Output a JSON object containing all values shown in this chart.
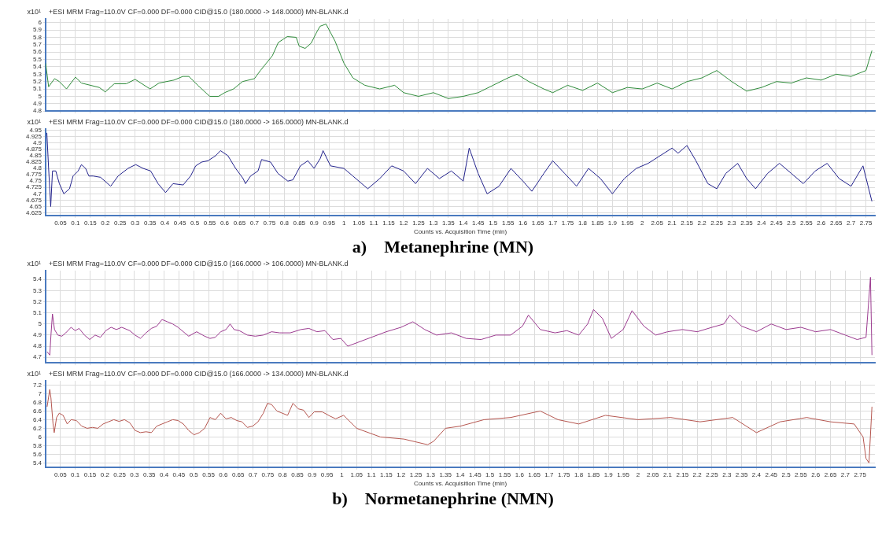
{
  "chart_data": [
    {
      "type": "line",
      "title": "+ESI MRM Frag=110.0V CF=0.000 DF=0.000 CID@15.0 (180.0000 -> 148.0000) MN-BLANK.d",
      "ylabel": "x10¹",
      "color": "#2e8b3a",
      "x": [
        0,
        0.01,
        0.03,
        0.046,
        0.07,
        0.1,
        0.12,
        0.15,
        0.18,
        0.2,
        0.23,
        0.27,
        0.3,
        0.35,
        0.38,
        0.43,
        0.46,
        0.48,
        0.51,
        0.55,
        0.58,
        0.6,
        0.63,
        0.66,
        0.7,
        0.72,
        0.74,
        0.76,
        0.78,
        0.81,
        0.84,
        0.85,
        0.87,
        0.89,
        0.91,
        0.92,
        0.94,
        0.97,
        1.0,
        1.03,
        1.07,
        1.12,
        1.17,
        1.2,
        1.25,
        1.3,
        1.35,
        1.4,
        1.45,
        1.5,
        1.55,
        1.58,
        1.62,
        1.67,
        1.7,
        1.75,
        1.8,
        1.85,
        1.9,
        1.95,
        2.0,
        2.05,
        2.1,
        2.15,
        2.2,
        2.25,
        2.3,
        2.35,
        2.4,
        2.45,
        2.5,
        2.55,
        2.6,
        2.65,
        2.7,
        2.75,
        2.77
      ],
      "values": [
        5.45,
        5.13,
        5.24,
        5.2,
        5.1,
        5.26,
        5.18,
        5.15,
        5.12,
        5.06,
        5.17,
        5.17,
        5.23,
        5.1,
        5.18,
        5.22,
        5.27,
        5.27,
        5.15,
        5.0,
        5.0,
        5.05,
        5.1,
        5.2,
        5.24,
        5.35,
        5.45,
        5.55,
        5.73,
        5.81,
        5.8,
        5.68,
        5.65,
        5.72,
        5.88,
        5.95,
        5.98,
        5.75,
        5.45,
        5.25,
        5.15,
        5.1,
        5.15,
        5.05,
        5.0,
        5.05,
        4.97,
        5.0,
        5.05,
        5.15,
        5.25,
        5.3,
        5.2,
        5.1,
        5.05,
        5.15,
        5.08,
        5.18,
        5.05,
        5.12,
        5.1,
        5.18,
        5.1,
        5.2,
        5.25,
        5.35,
        5.2,
        5.07,
        5.12,
        5.2,
        5.18,
        5.25,
        5.22,
        5.3,
        5.27,
        5.35,
        5.62
      ],
      "xlim": [
        0,
        2.78
      ],
      "ylim": [
        4.8,
        6.05
      ],
      "yticks": [
        4.8,
        4.9,
        5,
        5.1,
        5.2,
        5.3,
        5.4,
        5.5,
        5.6,
        5.7,
        5.8,
        5.9,
        6
      ],
      "xticks": [
        0.05,
        0.1,
        0.15,
        0.2,
        0.25,
        0.3,
        0.35,
        0.4,
        0.45,
        0.5,
        0.55,
        0.6,
        0.65,
        0.7,
        0.75,
        0.8,
        0.85,
        0.9,
        0.95,
        1,
        1.05,
        1.1,
        1.15,
        1.2,
        1.25,
        1.3,
        1.35,
        1.4,
        1.45,
        1.5,
        1.55,
        1.6,
        1.65,
        1.7,
        1.75,
        1.8,
        1.85,
        1.9,
        1.95,
        2,
        2.05,
        2.1,
        2.15,
        2.2,
        2.25,
        2.3,
        2.35,
        2.4,
        2.45,
        2.5,
        2.55,
        2.6,
        2.65,
        2.7,
        2.75
      ],
      "grid": true,
      "tick_labels": "y"
    },
    {
      "type": "line",
      "title": "+ESI MRM Frag=110.0V CF=0.000 DF=0.000 CID@15.0 (180.0000 -> 165.0000) MN-BLANK.d",
      "ylabel": "x10¹",
      "xlabel": "Counts vs. Acquisition Time (min)",
      "color": "#22228c",
      "x": [
        0.004,
        0.01,
        0.017,
        0.023,
        0.034,
        0.046,
        0.061,
        0.08,
        0.092,
        0.109,
        0.12,
        0.134,
        0.145,
        0.159,
        0.184,
        0.218,
        0.243,
        0.276,
        0.302,
        0.327,
        0.352,
        0.377,
        0.402,
        0.427,
        0.461,
        0.486,
        0.503,
        0.523,
        0.544,
        0.57,
        0.586,
        0.611,
        0.637,
        0.662,
        0.67,
        0.687,
        0.712,
        0.724,
        0.754,
        0.779,
        0.812,
        0.829,
        0.854,
        0.879,
        0.9,
        0.921,
        0.93,
        0.955,
        1.0,
        1.03,
        1.08,
        1.12,
        1.16,
        1.2,
        1.24,
        1.28,
        1.32,
        1.36,
        1.4,
        1.42,
        1.45,
        1.48,
        1.52,
        1.56,
        1.6,
        1.63,
        1.67,
        1.7,
        1.74,
        1.78,
        1.82,
        1.86,
        1.9,
        1.94,
        1.98,
        2.02,
        2.06,
        2.1,
        2.12,
        2.15,
        2.18,
        2.22,
        2.25,
        2.28,
        2.32,
        2.35,
        2.38,
        2.42,
        2.46,
        2.5,
        2.54,
        2.58,
        2.62,
        2.66,
        2.7,
        2.74,
        2.77
      ],
      "values": [
        4.94,
        4.8,
        4.65,
        4.79,
        4.79,
        4.74,
        4.7,
        4.72,
        4.77,
        4.79,
        4.815,
        4.8,
        4.77,
        4.77,
        4.765,
        4.73,
        4.77,
        4.8,
        4.815,
        4.8,
        4.79,
        4.74,
        4.705,
        4.74,
        4.735,
        4.77,
        4.81,
        4.825,
        4.83,
        4.85,
        4.87,
        4.85,
        4.8,
        4.76,
        4.74,
        4.77,
        4.79,
        4.835,
        4.825,
        4.78,
        4.75,
        4.755,
        4.81,
        4.83,
        4.8,
        4.84,
        4.87,
        4.81,
        4.8,
        4.77,
        4.72,
        4.76,
        4.81,
        4.79,
        4.74,
        4.8,
        4.76,
        4.79,
        4.75,
        4.88,
        4.78,
        4.7,
        4.73,
        4.8,
        4.75,
        4.71,
        4.78,
        4.83,
        4.78,
        4.73,
        4.8,
        4.76,
        4.7,
        4.76,
        4.8,
        4.82,
        4.85,
        4.88,
        4.86,
        4.89,
        4.83,
        4.74,
        4.72,
        4.78,
        4.82,
        4.76,
        4.72,
        4.78,
        4.82,
        4.78,
        4.74,
        4.79,
        4.82,
        4.76,
        4.73,
        4.81,
        4.67
      ],
      "xlim": [
        0,
        2.78
      ],
      "ylim": [
        4.615,
        4.955
      ],
      "yticks": [
        4.625,
        4.65,
        4.675,
        4.7,
        4.725,
        4.75,
        4.775,
        4.8,
        4.825,
        4.85,
        4.875,
        4.9,
        4.925,
        4.95
      ],
      "xticks": [
        0.05,
        0.1,
        0.15,
        0.2,
        0.25,
        0.3,
        0.35,
        0.4,
        0.45,
        0.5,
        0.55,
        0.6,
        0.65,
        0.7,
        0.75,
        0.8,
        0.85,
        0.9,
        0.95,
        1,
        1.05,
        1.1,
        1.15,
        1.2,
        1.25,
        1.3,
        1.35,
        1.4,
        1.45,
        1.5,
        1.55,
        1.6,
        1.65,
        1.7,
        1.75,
        1.8,
        1.85,
        1.9,
        1.95,
        2,
        2.05,
        2.1,
        2.15,
        2.2,
        2.25,
        2.3,
        2.35,
        2.4,
        2.45,
        2.5,
        2.55,
        2.6,
        2.65,
        2.7,
        2.75
      ],
      "grid": true,
      "annotations": [
        "a)    Metanephrine (MN)"
      ]
    },
    {
      "type": "line",
      "title": "+ESI MRM Frag=110.0V CF=0.000 DF=0.000 CID@15.0 (166.0000 -> 106.0000) MN-BLANK.d",
      "ylabel": "x10¹",
      "color": "#9b3a8f",
      "x": [
        0.005,
        0.014,
        0.018,
        0.023,
        0.03,
        0.041,
        0.055,
        0.068,
        0.086,
        0.1,
        0.113,
        0.131,
        0.149,
        0.167,
        0.185,
        0.203,
        0.221,
        0.239,
        0.257,
        0.284,
        0.302,
        0.32,
        0.339,
        0.357,
        0.375,
        0.393,
        0.411,
        0.429,
        0.447,
        0.465,
        0.483,
        0.51,
        0.537,
        0.555,
        0.573,
        0.591,
        0.609,
        0.623,
        0.636,
        0.654,
        0.681,
        0.708,
        0.735,
        0.763,
        0.79,
        0.826,
        0.862,
        0.889,
        0.916,
        0.943,
        0.97,
        0.997,
        1.02,
        1.06,
        1.1,
        1.15,
        1.2,
        1.24,
        1.28,
        1.32,
        1.37,
        1.42,
        1.47,
        1.52,
        1.57,
        1.61,
        1.63,
        1.67,
        1.72,
        1.76,
        1.8,
        1.83,
        1.85,
        1.88,
        1.91,
        1.95,
        1.98,
        2.02,
        2.06,
        2.1,
        2.15,
        2.2,
        2.25,
        2.29,
        2.31,
        2.35,
        2.4,
        2.45,
        2.5,
        2.55,
        2.6,
        2.65,
        2.7,
        2.74,
        2.77,
        2.785,
        2.79
      ],
      "values": [
        4.75,
        4.72,
        4.9,
        5.09,
        4.95,
        4.9,
        4.89,
        4.92,
        4.97,
        4.94,
        4.96,
        4.9,
        4.86,
        4.9,
        4.88,
        4.94,
        4.97,
        4.95,
        4.97,
        4.94,
        4.9,
        4.87,
        4.92,
        4.96,
        4.98,
        5.04,
        5.02,
        5.0,
        4.97,
        4.93,
        4.89,
        4.93,
        4.89,
        4.87,
        4.88,
        4.93,
        4.95,
        5.0,
        4.95,
        4.94,
        4.9,
        4.89,
        4.9,
        4.93,
        4.92,
        4.92,
        4.95,
        4.96,
        4.93,
        4.94,
        4.86,
        4.87,
        4.8,
        4.84,
        4.88,
        4.93,
        4.97,
        5.02,
        4.95,
        4.9,
        4.92,
        4.87,
        4.86,
        4.9,
        4.9,
        4.98,
        5.08,
        4.95,
        4.92,
        4.94,
        4.9,
        5.0,
        5.13,
        5.05,
        4.87,
        4.95,
        5.12,
        4.98,
        4.9,
        4.93,
        4.95,
        4.93,
        4.97,
        5.0,
        5.08,
        4.98,
        4.93,
        5.0,
        4.95,
        4.97,
        4.93,
        4.95,
        4.9,
        4.86,
        4.88,
        5.42,
        4.72
      ],
      "xlim": [
        0,
        2.8
      ],
      "ylim": [
        4.65,
        5.48
      ],
      "yticks": [
        4.7,
        4.8,
        4.9,
        5,
        5.1,
        5.2,
        5.3,
        5.4
      ],
      "xticks": [
        0.05,
        0.1,
        0.15,
        0.2,
        0.25,
        0.3,
        0.35,
        0.4,
        0.45,
        0.5,
        0.55,
        0.6,
        0.65,
        0.7,
        0.75,
        0.8,
        0.85,
        0.9,
        0.95,
        1,
        1.05,
        1.1,
        1.15,
        1.2,
        1.25,
        1.3,
        1.35,
        1.4,
        1.45,
        1.5,
        1.55,
        1.6,
        1.65,
        1.7,
        1.75,
        1.8,
        1.85,
        1.9,
        1.95,
        2,
        2.05,
        2.1,
        2.15,
        2.2,
        2.25,
        2.3,
        2.35,
        2.4,
        2.45,
        2.5,
        2.55,
        2.6,
        2.65,
        2.7,
        2.75
      ],
      "grid": true,
      "tick_labels": "y"
    },
    {
      "type": "line",
      "title": "+ESI MRM Frag=110.0V CF=0.000 DF=0.000 CID@15.0 (166.0000 -> 134.0000) MN-BLANK.d",
      "ylabel": "x10¹",
      "xlabel": "Counts vs. Acquisition Time (min)",
      "color": "#b5564f",
      "x": [
        0.005,
        0.014,
        0.018,
        0.025,
        0.029,
        0.037,
        0.046,
        0.059,
        0.073,
        0.086,
        0.104,
        0.122,
        0.14,
        0.158,
        0.176,
        0.194,
        0.212,
        0.23,
        0.248,
        0.266,
        0.284,
        0.302,
        0.32,
        0.339,
        0.357,
        0.375,
        0.393,
        0.411,
        0.429,
        0.447,
        0.465,
        0.483,
        0.501,
        0.519,
        0.537,
        0.555,
        0.573,
        0.591,
        0.609,
        0.627,
        0.645,
        0.663,
        0.681,
        0.699,
        0.717,
        0.735,
        0.749,
        0.763,
        0.781,
        0.799,
        0.817,
        0.835,
        0.853,
        0.871,
        0.889,
        0.907,
        0.934,
        0.961,
        0.979,
        1.006,
        1.05,
        1.13,
        1.21,
        1.29,
        1.31,
        1.35,
        1.4,
        1.48,
        1.57,
        1.67,
        1.73,
        1.8,
        1.89,
        2.0,
        2.11,
        2.21,
        2.32,
        2.4,
        2.48,
        2.57,
        2.65,
        2.73,
        2.76,
        2.77,
        2.78,
        2.79
      ],
      "values": [
        6.7,
        7.1,
        6.9,
        6.3,
        6.1,
        6.45,
        6.55,
        6.5,
        6.3,
        6.4,
        6.38,
        6.25,
        6.2,
        6.22,
        6.2,
        6.3,
        6.35,
        6.4,
        6.36,
        6.4,
        6.33,
        6.15,
        6.1,
        6.12,
        6.1,
        6.25,
        6.3,
        6.35,
        6.4,
        6.38,
        6.3,
        6.15,
        6.05,
        6.1,
        6.2,
        6.45,
        6.4,
        6.55,
        6.42,
        6.45,
        6.38,
        6.35,
        6.22,
        6.25,
        6.35,
        6.55,
        6.78,
        6.75,
        6.6,
        6.55,
        6.5,
        6.78,
        6.65,
        6.62,
        6.45,
        6.58,
        6.58,
        6.48,
        6.42,
        6.5,
        6.2,
        6.0,
        5.95,
        5.82,
        5.9,
        6.2,
        6.25,
        6.4,
        6.45,
        6.6,
        6.4,
        6.3,
        6.5,
        6.4,
        6.45,
        6.35,
        6.45,
        6.1,
        6.35,
        6.45,
        6.35,
        6.3,
        6.0,
        5.5,
        5.4,
        6.7
      ],
      "xlim": [
        0,
        2.8
      ],
      "ylim": [
        5.3,
        7.3
      ],
      "yticks": [
        5.4,
        5.6,
        5.8,
        6,
        6.2,
        6.4,
        6.6,
        6.8,
        7,
        7.2
      ],
      "xticks": [
        0.05,
        0.1,
        0.15,
        0.2,
        0.25,
        0.3,
        0.35,
        0.4,
        0.45,
        0.5,
        0.55,
        0.6,
        0.65,
        0.7,
        0.75,
        0.8,
        0.85,
        0.9,
        0.95,
        1,
        1.05,
        1.1,
        1.15,
        1.2,
        1.25,
        1.3,
        1.35,
        1.4,
        1.45,
        1.5,
        1.55,
        1.6,
        1.65,
        1.7,
        1.75,
        1.8,
        1.85,
        1.9,
        1.95,
        2,
        2.05,
        2.1,
        2.15,
        2.2,
        2.25,
        2.3,
        2.35,
        2.4,
        2.45,
        2.5,
        2.55,
        2.6,
        2.65,
        2.7,
        2.75
      ],
      "grid": true,
      "annotations": [
        "b)    Normetanephrine (NMN)"
      ]
    }
  ]
}
